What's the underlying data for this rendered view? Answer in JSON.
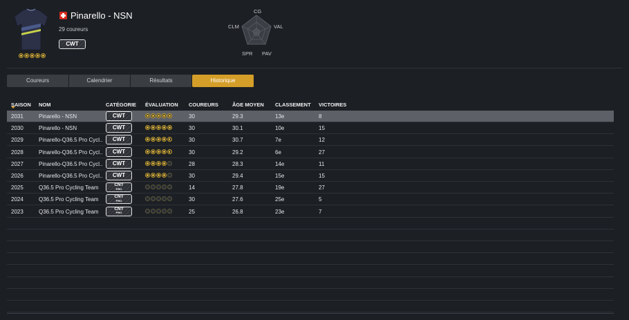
{
  "team": {
    "name": "Pinarello - NSN",
    "riders": "29 coureurs",
    "category": "CWT",
    "rating_stars": [
      1,
      1,
      1,
      1,
      1
    ]
  },
  "radar": {
    "top": "CG",
    "right": "VAL",
    "bottom_right": "PAV",
    "bottom_left": "SPR",
    "left": "CLM"
  },
  "tabs": [
    {
      "label": "Coureurs",
      "active": false
    },
    {
      "label": "Calendrier",
      "active": false
    },
    {
      "label": "Résultats",
      "active": false
    },
    {
      "label": "Historique",
      "active": true
    }
  ],
  "table": {
    "headers": [
      "SAISON",
      "NOM",
      "CATÉGORIE",
      "ÉVALUATION",
      "COUREURS",
      "ÂGE MOYEN",
      "CLASSEMENT",
      "VICTOIRES"
    ],
    "rows": [
      {
        "season": "2031",
        "name": "Pinarello - NSN",
        "cat": "CWT",
        "cat2": "",
        "stars": [
          1,
          1,
          1,
          1,
          1
        ],
        "riders": "30",
        "age": "29.3",
        "rank": "13e",
        "wins": "8",
        "selected": true
      },
      {
        "season": "2030",
        "name": "Pinarello - NSN",
        "cat": "CWT",
        "cat2": "",
        "stars": [
          1,
          1,
          1,
          1,
          1
        ],
        "riders": "30",
        "age": "30.1",
        "rank": "10e",
        "wins": "15",
        "selected": false
      },
      {
        "season": "2029",
        "name": "Pinarello-Q36.5 Pro Cycl..",
        "cat": "CWT",
        "cat2": "",
        "stars": [
          1,
          1,
          1,
          1,
          0.5
        ],
        "riders": "30",
        "age": "30.7",
        "rank": "7e",
        "wins": "12",
        "selected": false
      },
      {
        "season": "2028",
        "name": "Pinarello-Q36.5 Pro Cycl..",
        "cat": "CWT",
        "cat2": "",
        "stars": [
          1,
          1,
          1,
          1,
          0.5
        ],
        "riders": "30",
        "age": "29.2",
        "rank": "6e",
        "wins": "27",
        "selected": false
      },
      {
        "season": "2027",
        "name": "Pinarello-Q36.5 Pro Cycl..",
        "cat": "CWT",
        "cat2": "",
        "stars": [
          1,
          1,
          1,
          1,
          0
        ],
        "riders": "28",
        "age": "28.3",
        "rank": "14e",
        "wins": "11",
        "selected": false
      },
      {
        "season": "2026",
        "name": "Pinarello-Q36.5 Pro Cycl..",
        "cat": "CWT",
        "cat2": "",
        "stars": [
          1,
          1,
          1,
          1,
          0
        ],
        "riders": "30",
        "age": "29.4",
        "rank": "15e",
        "wins": "15",
        "selected": false
      },
      {
        "season": "2025",
        "name": "Q36.5 Pro Cycling Team",
        "cat": "CNT",
        "cat2": "PRO",
        "stars": [
          0,
          0,
          0,
          0,
          0
        ],
        "riders": "14",
        "age": "27.8",
        "rank": "19e",
        "wins": "27",
        "selected": false
      },
      {
        "season": "2024",
        "name": "Q36.5 Pro Cycling Team",
        "cat": "CNT",
        "cat2": "PRO",
        "stars": [
          0,
          0,
          0,
          0,
          0
        ],
        "riders": "30",
        "age": "27.6",
        "rank": "25e",
        "wins": "5",
        "selected": false
      },
      {
        "season": "2023",
        "name": "Q36.5 Pro Cycling Team",
        "cat": "CNT",
        "cat2": "PRO",
        "stars": [
          0,
          0,
          0,
          0,
          0
        ],
        "riders": "25",
        "age": "26.8",
        "rank": "23e",
        "wins": "7",
        "selected": false
      }
    ],
    "empty_rows": 8
  },
  "colors": {
    "accent": "#d49e29",
    "background": "#1c1f24",
    "selected_row": "#5d6066",
    "star": "#e2b63a"
  }
}
